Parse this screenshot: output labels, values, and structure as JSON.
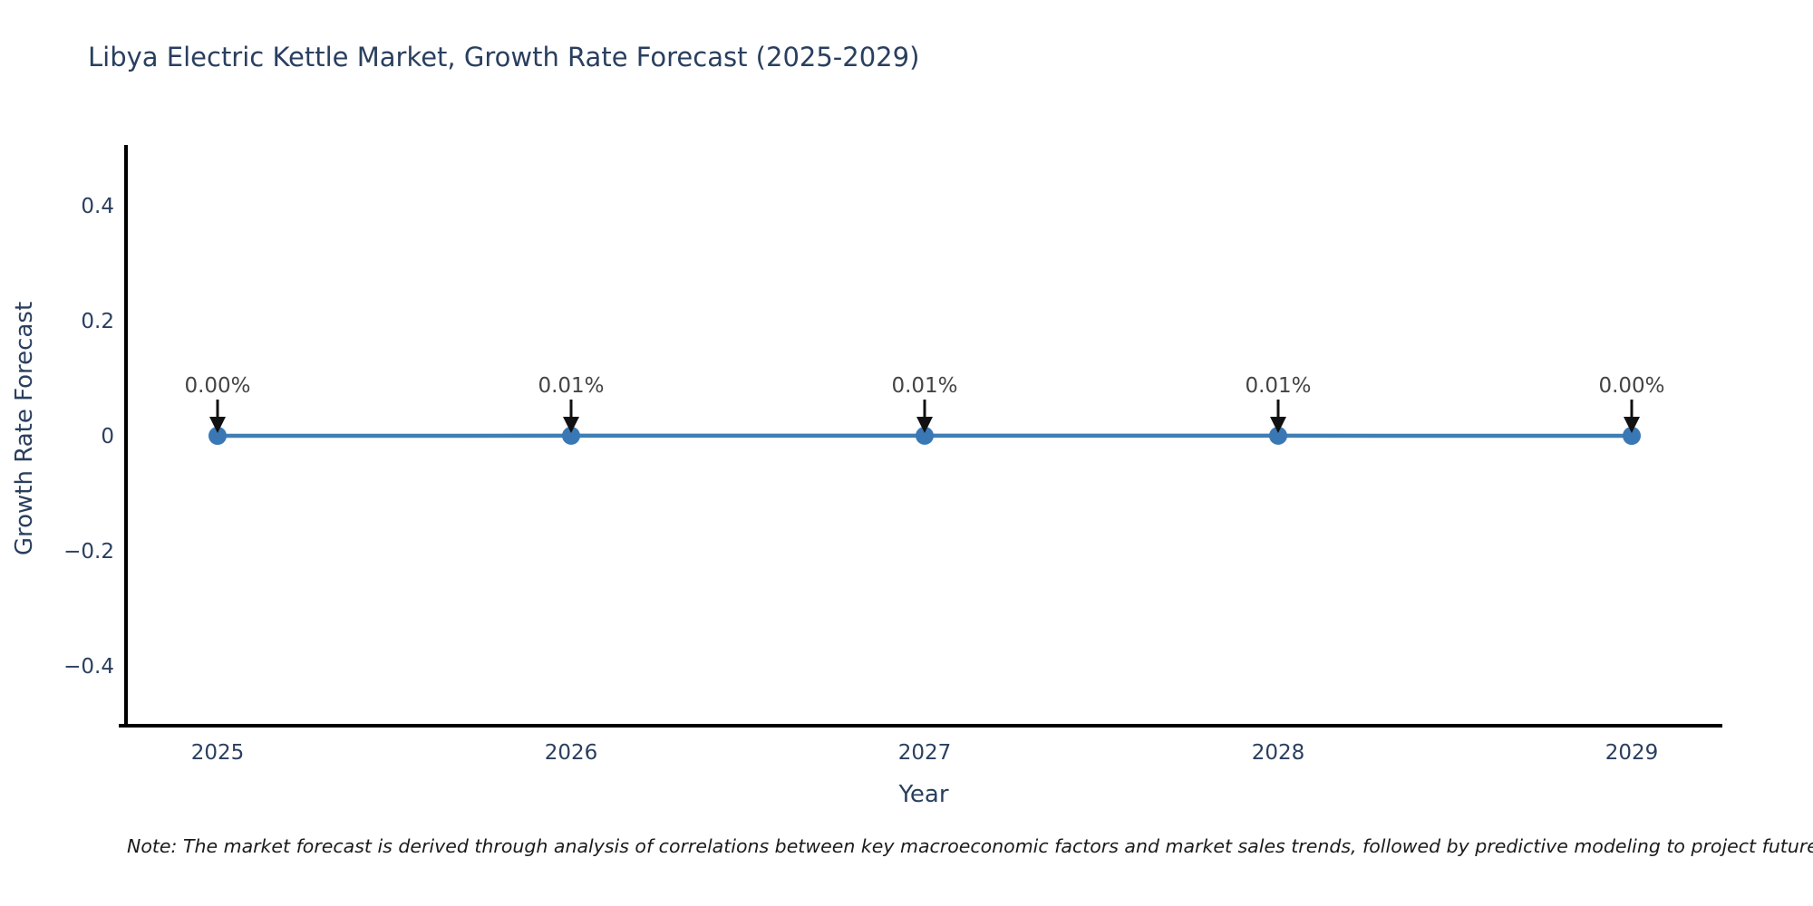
{
  "chart_data": {
    "type": "line",
    "title": "Libya Electric Kettle Market, Growth Rate Forecast (2025-2029)",
    "x": [
      2025,
      2026,
      2027,
      2028,
      2029
    ],
    "series": [
      {
        "name": "Growth Rate Forecast",
        "values": [
          0.0,
          0.0001,
          0.0001,
          0.0001,
          0.0
        ]
      }
    ],
    "point_labels": [
      "0.00%",
      "0.01%",
      "0.01%",
      "0.01%",
      "0.00%"
    ],
    "xlabel": "Year",
    "ylabel": "Growth Rate Forecast",
    "xtick_labels": [
      "2025",
      "2026",
      "2027",
      "2028",
      "2029"
    ],
    "ytick_values": [
      0.4,
      0.2,
      0,
      -0.2,
      -0.4
    ],
    "ytick_labels": [
      "0.4",
      "0.2",
      "0",
      "−0.2",
      "−0.4"
    ],
    "ylim": [
      -0.5,
      0.505
    ],
    "grid": false,
    "legend": false,
    "colors": {
      "line": "#3f7eb6",
      "marker": "#3a78b5",
      "axis": "#000000",
      "tick_text": "#2a3f5f",
      "annotation_text": "#444444",
      "arrow": "#111111"
    }
  },
  "footnote": {
    "text": "Note: The market forecast is derived through analysis of correlations between key macroeconomic factors and market sales trends, followed by predictive modeling to project future sales"
  }
}
